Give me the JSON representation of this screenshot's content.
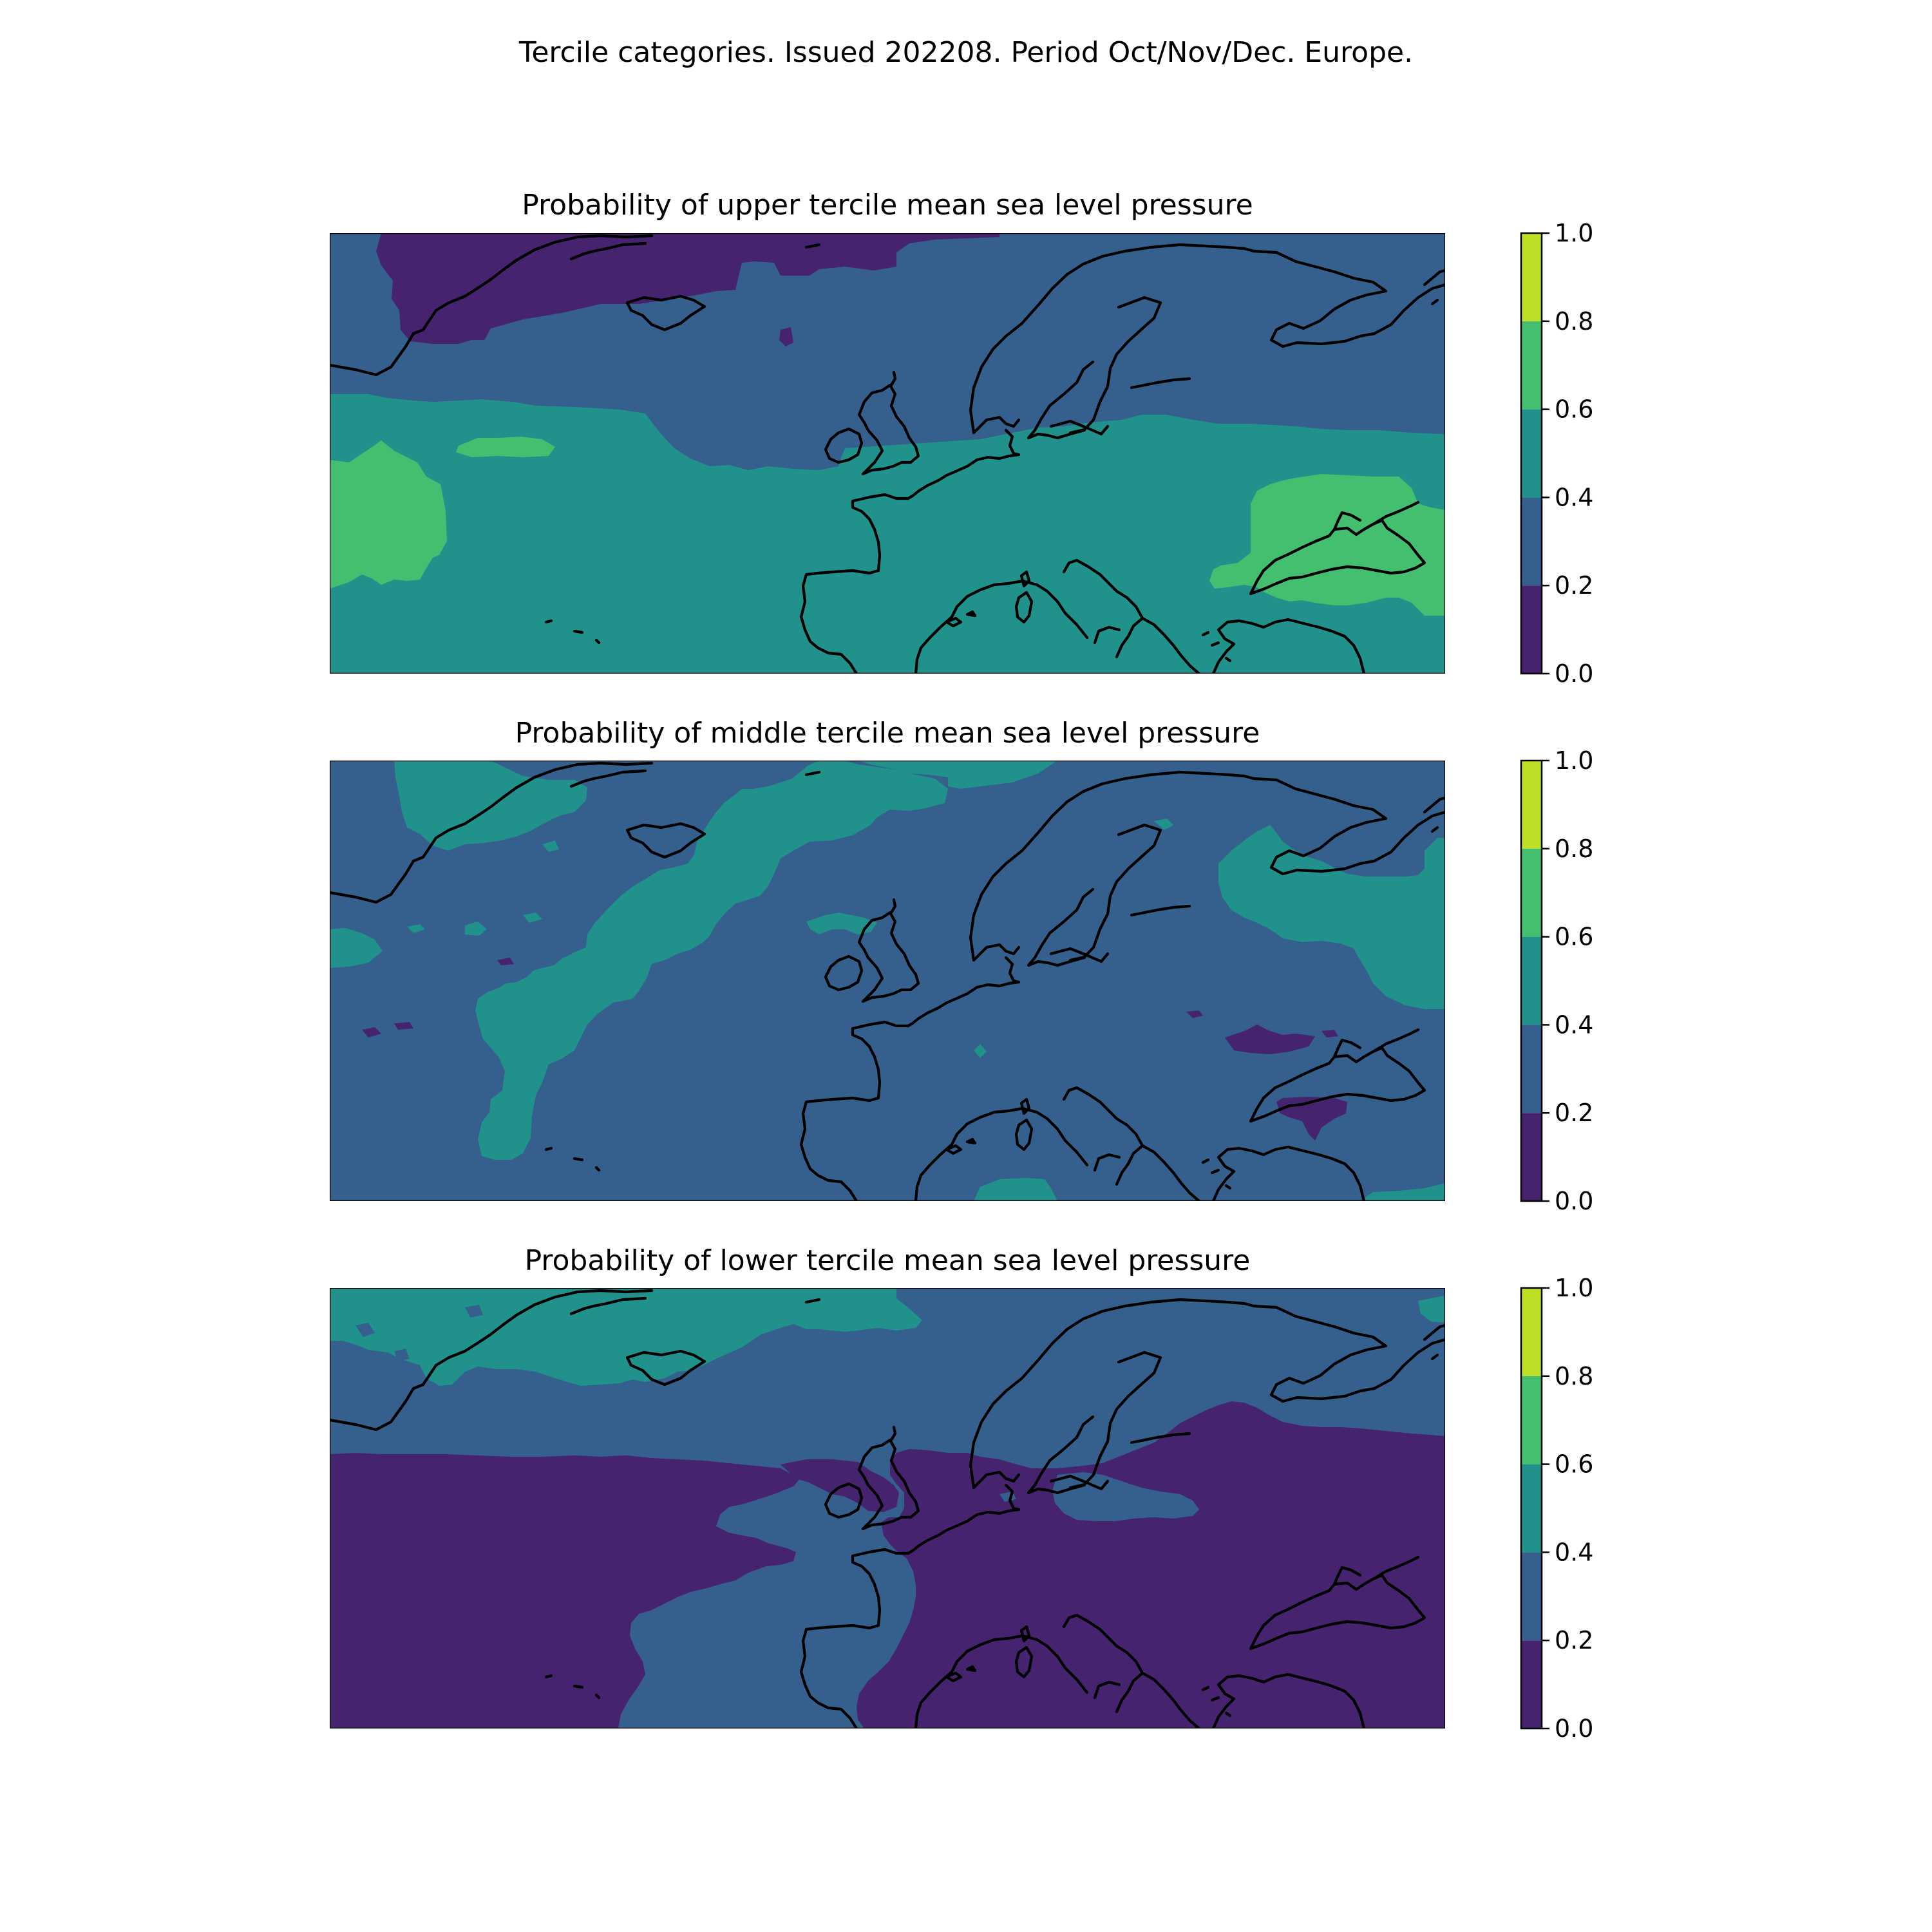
{
  "figure": {
    "suptitle": "Tercile categories. Issued 202208. Period Oct/Nov/Dec. Europe."
  },
  "colorbar": {
    "ticks": [
      "0.0",
      "0.2",
      "0.4",
      "0.6",
      "0.8",
      "1.0"
    ],
    "bins": [
      {
        "from": 0.0,
        "to": 0.2,
        "color": "#46236f"
      },
      {
        "from": 0.2,
        "to": 0.4,
        "color": "#355f8d"
      },
      {
        "from": 0.4,
        "to": 0.6,
        "color": "#21918c"
      },
      {
        "from": 0.6,
        "to": 0.8,
        "color": "#44bf70"
      },
      {
        "from": 0.8,
        "to": 1.0,
        "color": "#bddf26"
      }
    ]
  },
  "panels": [
    {
      "title": "Probability of upper tercile mean sea level pressure",
      "regions": [
        {
          "area": "whole Europe / N. Atlantic",
          "category": "0.2-0.4"
        },
        {
          "area": "Greenland Sea / north of Iceland",
          "category": "0.0-0.2"
        },
        {
          "area": "mid Atlantic, western & central Europe, Mediterranean, south",
          "category": "0.4-0.6"
        },
        {
          "area": "western Atlantic near 20-40N",
          "category": "0.6-0.8"
        },
        {
          "area": "Black Sea / Caspian region",
          "category": "0.6-0.8"
        }
      ]
    },
    {
      "title": "Probability of middle tercile mean sea level pressure",
      "regions": [
        {
          "area": "most of domain",
          "category": "0.2-0.4"
        },
        {
          "area": "British Isles / North Sea tongue",
          "category": "0.4-0.6"
        },
        {
          "area": "northwest Russia / eastern edge",
          "category": "0.4-0.6"
        },
        {
          "area": "Black Sea / northeastern Turkey patches",
          "category": "0.0-0.2"
        }
      ]
    },
    {
      "title": "Probability of lower tercile mean sea level pressure",
      "regions": [
        {
          "area": "Greenland / Iceland / northern Atlantic",
          "category": "0.4-0.6"
        },
        {
          "area": "Scandinavia / northern band",
          "category": "0.2-0.4"
        },
        {
          "area": "Atlantic and southern Europe / Mediterranean / east",
          "category": "0.0-0.2"
        },
        {
          "area": "Bay of Biscay / Iberia tongue",
          "category": "0.2-0.4"
        }
      ]
    }
  ]
}
